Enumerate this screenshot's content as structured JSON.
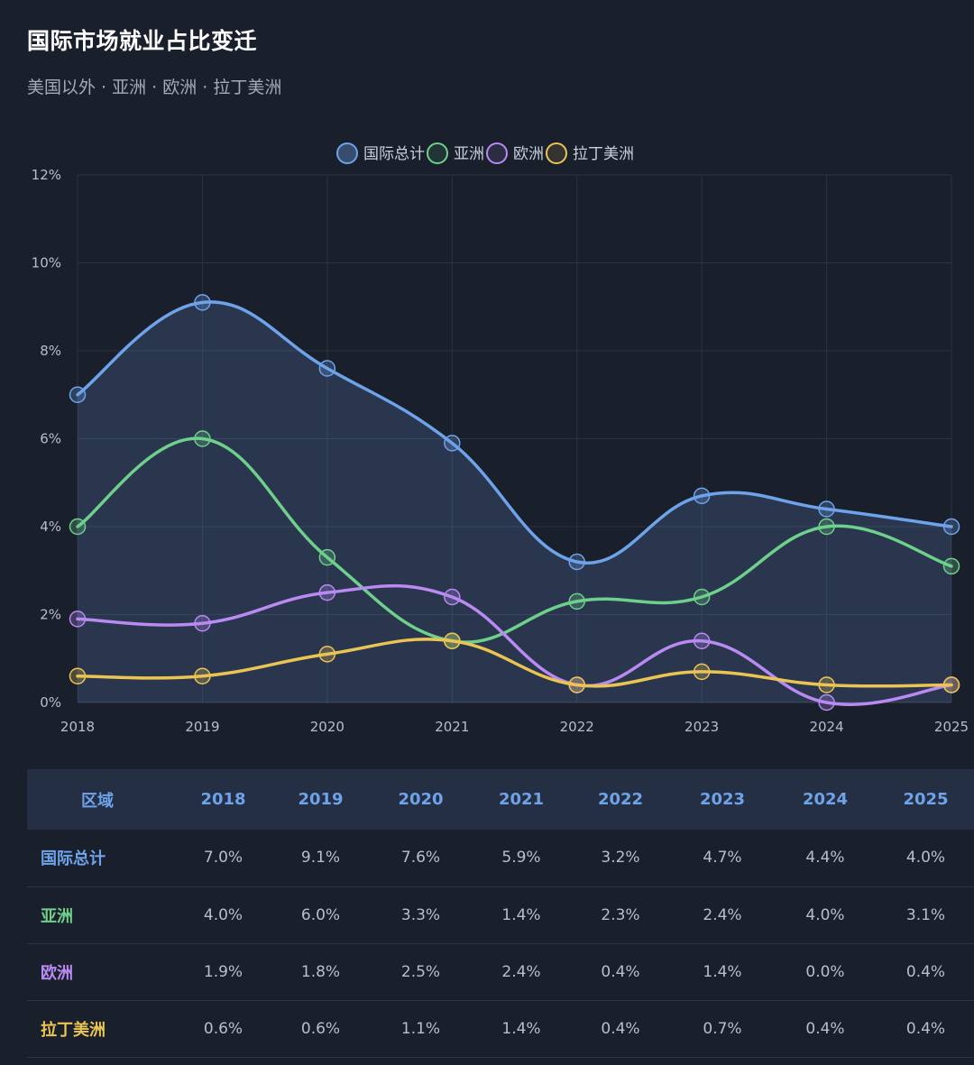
{
  "title": "国际市场就业占比变迁",
  "subtitle": "美国以外 · 亚洲 · 欧洲 · 拉丁美洲",
  "chart_data": {
    "type": "line",
    "categories": [
      "2018",
      "2019",
      "2020",
      "2021",
      "2022",
      "2023",
      "2024",
      "2025"
    ],
    "ylim": [
      0,
      12
    ],
    "yticks": [
      {
        "value": 0,
        "label": "0%"
      },
      {
        "value": 2,
        "label": "2%"
      },
      {
        "value": 4,
        "label": "4%"
      },
      {
        "value": 6,
        "label": "6%"
      },
      {
        "value": 8,
        "label": "8%"
      },
      {
        "value": 10,
        "label": "10%"
      },
      {
        "value": 12,
        "label": "12%"
      }
    ],
    "legend_position": "top-center",
    "grid": true,
    "series": [
      {
        "name": "国际总计",
        "color": "#6ea3ea",
        "fill": true,
        "values": [
          7.0,
          9.1,
          7.6,
          5.9,
          3.2,
          4.7,
          4.4,
          4.0
        ]
      },
      {
        "name": "亚洲",
        "color": "#6fd08c",
        "fill": false,
        "values": [
          4.0,
          6.0,
          3.3,
          1.4,
          2.3,
          2.4,
          4.0,
          3.1
        ]
      },
      {
        "name": "欧洲",
        "color": "#b98af2",
        "fill": false,
        "values": [
          1.9,
          1.8,
          2.5,
          2.4,
          0.4,
          1.4,
          0.0,
          0.4
        ]
      },
      {
        "name": "拉丁美洲",
        "color": "#ebc553",
        "fill": false,
        "values": [
          0.6,
          0.6,
          1.1,
          1.4,
          0.4,
          0.7,
          0.4,
          0.4
        ]
      }
    ]
  },
  "table": {
    "header_first": "区域",
    "years": [
      "2018",
      "2019",
      "2020",
      "2021",
      "2022",
      "2023",
      "2024",
      "2025"
    ],
    "rows": [
      {
        "region": "国际总计",
        "color": "#6ea3ea",
        "values": [
          "7.0%",
          "9.1%",
          "7.6%",
          "5.9%",
          "3.2%",
          "4.7%",
          "4.4%",
          "4.0%"
        ]
      },
      {
        "region": "亚洲",
        "color": "#6fd08c",
        "values": [
          "4.0%",
          "6.0%",
          "3.3%",
          "1.4%",
          "2.3%",
          "2.4%",
          "4.0%",
          "3.1%"
        ]
      },
      {
        "region": "欧洲",
        "color": "#b98af2",
        "values": [
          "1.9%",
          "1.8%",
          "2.5%",
          "2.4%",
          "0.4%",
          "1.4%",
          "0.0%",
          "0.4%"
        ]
      },
      {
        "region": "拉丁美洲",
        "color": "#ebc553",
        "values": [
          "0.6%",
          "0.6%",
          "1.1%",
          "1.4%",
          "0.4%",
          "0.7%",
          "0.4%",
          "0.4%"
        ]
      }
    ]
  }
}
